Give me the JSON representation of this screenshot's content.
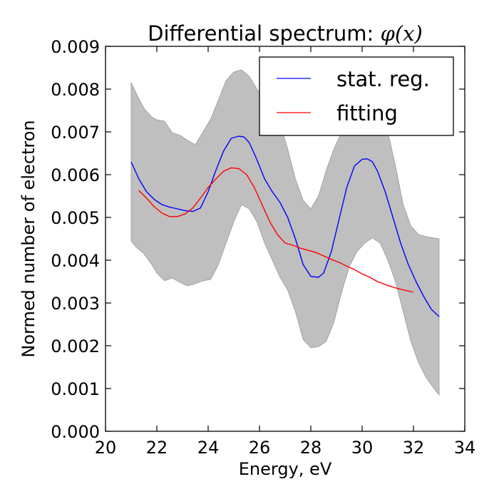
{
  "chart_data": {
    "type": "line",
    "title": "Differential spectrum: ",
    "title_math": "φ(x)",
    "xlabel": "Energy, eV",
    "ylabel": "Normed number of electron",
    "xlim": [
      20,
      34
    ],
    "ylim": [
      0,
      0.009
    ],
    "x_ticks": [
      "20",
      "22",
      "24",
      "26",
      "28",
      "30",
      "32",
      "34"
    ],
    "y_ticks": [
      "0.000",
      "0.001",
      "0.002",
      "0.003",
      "0.004",
      "0.005",
      "0.006",
      "0.007",
      "0.008",
      "0.009"
    ],
    "grid": false,
    "legend_position": "top-right",
    "band": {
      "color": "#bfbfbf",
      "edge_color": "#999999",
      "x": [
        21.0,
        21.2,
        21.5,
        21.8,
        22.0,
        22.3,
        22.6,
        22.9,
        23.2,
        23.5,
        23.8,
        24.1,
        24.4,
        24.7,
        25.0,
        25.3,
        25.6,
        25.9,
        26.2,
        26.5,
        26.8,
        27.1,
        27.4,
        27.7,
        28.0,
        28.3,
        28.6,
        28.9,
        29.2,
        29.5,
        29.8,
        30.1,
        30.4,
        30.7,
        31.0,
        31.3,
        31.6,
        31.9,
        32.2,
        32.5,
        32.8,
        33.0
      ],
      "upper": [
        0.00815,
        0.0079,
        0.00755,
        0.00735,
        0.00728,
        0.00725,
        0.00698,
        0.00692,
        0.0068,
        0.0067,
        0.007,
        0.0073,
        0.00775,
        0.0082,
        0.0084,
        0.00845,
        0.0083,
        0.008,
        0.0078,
        0.0076,
        0.0072,
        0.0066,
        0.0059,
        0.0054,
        0.0052,
        0.0055,
        0.0061,
        0.0066,
        0.007,
        0.00725,
        0.00745,
        0.0076,
        0.0076,
        0.0074,
        0.007,
        0.0062,
        0.0053,
        0.0048,
        0.0046,
        0.00455,
        0.00452,
        0.0045
      ],
      "lower": [
        0.00445,
        0.0043,
        0.00415,
        0.0039,
        0.0037,
        0.00352,
        0.00358,
        0.00348,
        0.0034,
        0.00345,
        0.00352,
        0.00355,
        0.0039,
        0.0044,
        0.0049,
        0.0053,
        0.0052,
        0.0049,
        0.0044,
        0.004,
        0.0036,
        0.0033,
        0.0028,
        0.00215,
        0.00195,
        0.00198,
        0.0021,
        0.00255,
        0.00325,
        0.00385,
        0.0042,
        0.0044,
        0.00452,
        0.0044,
        0.004,
        0.0035,
        0.0028,
        0.0021,
        0.0016,
        0.00125,
        0.001,
        0.00085
      ]
    },
    "series": [
      {
        "name": "stat. reg.",
        "color": "#0000ff",
        "x": [
          21.0,
          21.3,
          21.6,
          21.9,
          22.2,
          22.5,
          22.8,
          23.1,
          23.4,
          23.7,
          24.0,
          24.3,
          24.6,
          24.9,
          25.2,
          25.4,
          25.6,
          25.9,
          26.2,
          26.5,
          26.8,
          27.1,
          27.4,
          27.7,
          28.0,
          28.3,
          28.5,
          28.8,
          29.1,
          29.4,
          29.7,
          30.0,
          30.2,
          30.4,
          30.6,
          30.9,
          31.2,
          31.5,
          31.8,
          32.1,
          32.4,
          32.7,
          33.0
        ],
        "values": [
          0.0063,
          0.0059,
          0.0056,
          0.00542,
          0.0053,
          0.00524,
          0.0052,
          0.00516,
          0.00514,
          0.00522,
          0.0056,
          0.0061,
          0.00655,
          0.00685,
          0.0069,
          0.00688,
          0.00675,
          0.00635,
          0.0059,
          0.0056,
          0.00535,
          0.005,
          0.0045,
          0.0039,
          0.00362,
          0.0036,
          0.0037,
          0.0042,
          0.00495,
          0.0057,
          0.0062,
          0.00636,
          0.00637,
          0.0063,
          0.00608,
          0.0056,
          0.005,
          0.0044,
          0.0039,
          0.0035,
          0.00315,
          0.00285,
          0.00268
        ]
      },
      {
        "name": "fitting",
        "color": "#ff0000",
        "x": [
          21.3,
          21.6,
          21.9,
          22.2,
          22.5,
          22.8,
          23.1,
          23.4,
          23.7,
          24.0,
          24.3,
          24.6,
          24.9,
          25.2,
          25.5,
          25.8,
          26.1,
          26.4,
          26.7,
          27.0,
          27.3,
          27.6,
          27.9,
          28.2,
          28.5,
          28.8,
          29.1,
          29.4,
          29.7,
          30.0,
          30.3,
          30.6,
          30.9,
          31.2,
          31.5,
          31.8,
          32.0
        ],
        "values": [
          0.00563,
          0.00545,
          0.00525,
          0.0051,
          0.00502,
          0.00502,
          0.00508,
          0.00522,
          0.00545,
          0.0057,
          0.0059,
          0.00608,
          0.00616,
          0.00614,
          0.006,
          0.0057,
          0.0053,
          0.0049,
          0.0046,
          0.0044,
          0.00435,
          0.00428,
          0.00423,
          0.00418,
          0.0041,
          0.00402,
          0.00395,
          0.00386,
          0.00378,
          0.00368,
          0.0036,
          0.0035,
          0.00343,
          0.00337,
          0.00332,
          0.00328,
          0.00325
        ]
      }
    ]
  }
}
